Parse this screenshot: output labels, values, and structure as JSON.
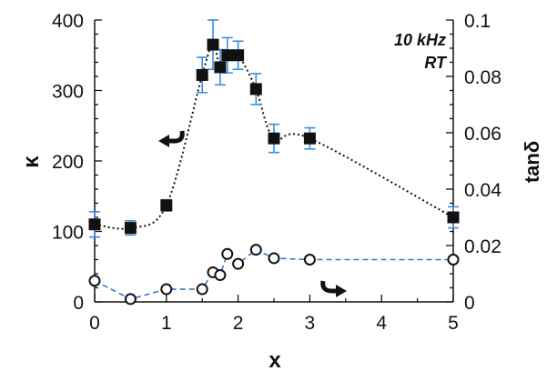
{
  "chart_data": {
    "type": "scatter",
    "xlabel": "x",
    "ylabel_left": "κ",
    "ylabel_right": "tanδ",
    "xlim": [
      0,
      5
    ],
    "ylim_left": [
      0,
      400
    ],
    "ylim_right": [
      0,
      0.1
    ],
    "x_ticks": [
      "0",
      "1",
      "2",
      "3",
      "4",
      "5"
    ],
    "y_left_ticks": [
      "0",
      "100",
      "200",
      "300",
      "400"
    ],
    "y_right_ticks": [
      "0",
      "0.02",
      "0.04",
      "0.06",
      "0.08",
      "0.1"
    ],
    "annotations": [
      "10 kHz",
      "RT"
    ],
    "colors": {
      "kappa": "#111111",
      "tan": "#2b7bd6",
      "errorbar": "#3a8fe0"
    },
    "series": [
      {
        "axis": "left",
        "marker": "filled-square",
        "line": "dotted",
        "x": [
          0,
          0.5,
          1,
          1.5,
          1.65,
          1.75,
          1.85,
          2,
          2.25,
          2.5,
          3,
          5
        ],
        "y": [
          110,
          105,
          137,
          322,
          365,
          333,
          350,
          350,
          302,
          232,
          232,
          120
        ],
        "yerr": [
          18,
          10,
          8,
          25,
          35,
          25,
          25,
          20,
          22,
          20,
          15,
          15
        ]
      },
      {
        "axis": "right",
        "marker": "open-circle",
        "line": "dashed",
        "x": [
          0,
          0.5,
          1,
          1.5,
          1.65,
          1.75,
          1.85,
          2,
          2.25,
          2.5,
          3,
          5
        ],
        "y": [
          0.0075,
          0.001,
          0.0045,
          0.0045,
          0.0105,
          0.0095,
          0.017,
          0.0135,
          0.0185,
          0.0155,
          0.015,
          0.015
        ]
      }
    ]
  }
}
